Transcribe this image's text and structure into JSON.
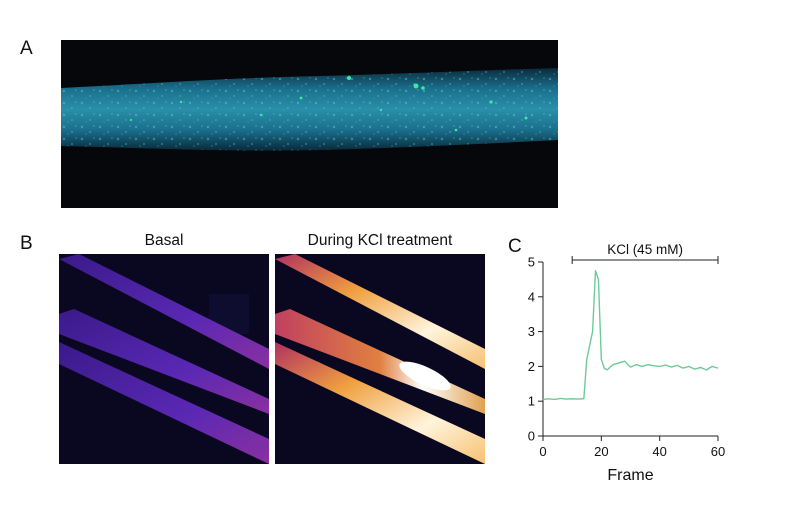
{
  "panels": {
    "a": {
      "letter": "A"
    },
    "b": {
      "letter": "B",
      "left_title": "Basal",
      "right_title": "During KCl treatment"
    },
    "c": {
      "letter": "C"
    }
  },
  "colors": {
    "panel_a_background": "#05070a",
    "panel_a_cell": "#1f8fa6",
    "panel_a_puncta": "#3de8a0",
    "panel_b_background": "#0a0820",
    "panel_b_basal_cell": "#5a28b4",
    "panel_b_treated_high": "#fff4dc",
    "panel_b_treated_mid": "#f0a040",
    "trace": "#6fc99a",
    "axis": "#222222"
  },
  "chart_data": {
    "type": "line",
    "xlabel": "Frame",
    "ylabel": "",
    "xlim": [
      0,
      60
    ],
    "ylim": [
      0,
      5
    ],
    "x_ticks": [
      "0",
      "20",
      "40",
      "60"
    ],
    "y_ticks": [
      "0",
      "1",
      "2",
      "3",
      "4",
      "5"
    ],
    "annotation": {
      "label": "KCl (45 mM)",
      "x_start": 10,
      "x_end": 60
    },
    "series": [
      {
        "color": "#6fc99a",
        "x": [
          0,
          2,
          4,
          6,
          8,
          10,
          12,
          14,
          15,
          16,
          17,
          18,
          19,
          20,
          21,
          22,
          24,
          26,
          28,
          30,
          32,
          34,
          36,
          38,
          40,
          42,
          44,
          46,
          48,
          50,
          52,
          54,
          56,
          58,
          60
        ],
        "y": [
          1.05,
          1.07,
          1.05,
          1.08,
          1.06,
          1.07,
          1.06,
          1.07,
          2.2,
          2.6,
          3.0,
          4.75,
          4.5,
          2.2,
          1.95,
          1.9,
          2.05,
          2.1,
          2.15,
          1.98,
          2.05,
          2.0,
          2.05,
          2.02,
          2.0,
          2.04,
          1.98,
          2.03,
          1.95,
          2.0,
          1.92,
          1.97,
          1.9,
          2.0,
          1.95
        ]
      }
    ]
  }
}
